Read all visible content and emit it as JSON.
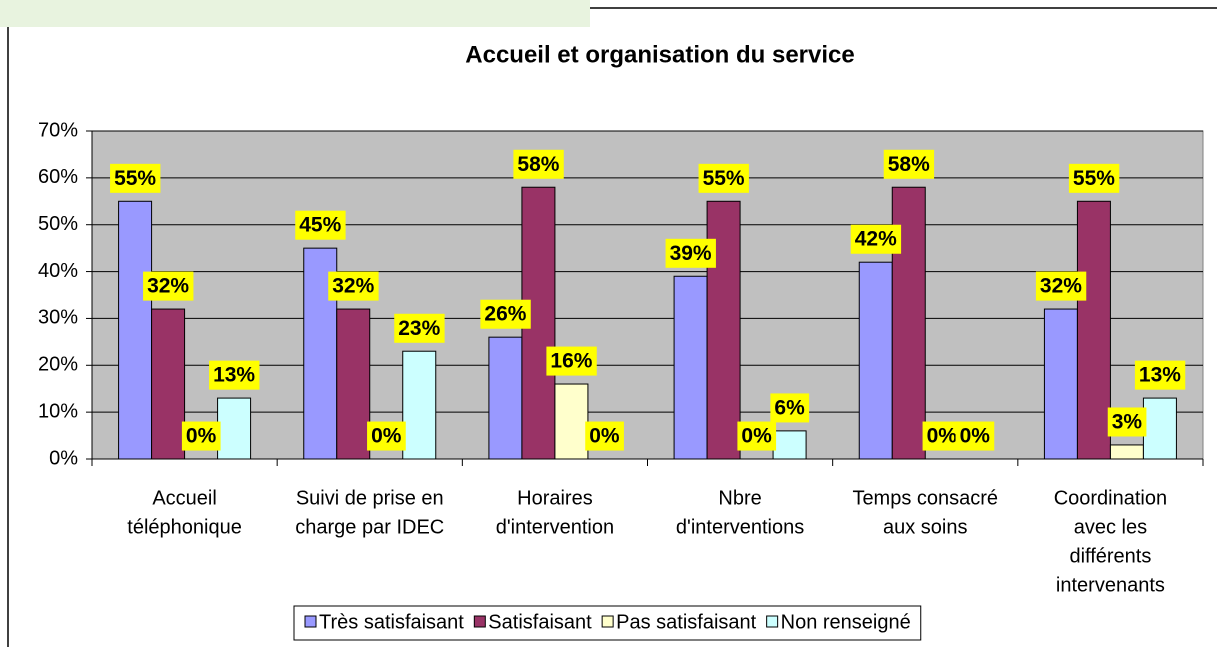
{
  "chart_data": {
    "type": "bar",
    "title": "Accueil et organisation du service",
    "categories": [
      [
        "Accueil",
        "téléphonique"
      ],
      [
        "Suivi de prise en",
        "charge par IDEC"
      ],
      [
        "Horaires",
        "d'intervention"
      ],
      [
        "Nbre",
        "d'interventions"
      ],
      [
        "Temps consacré",
        "aux soins"
      ],
      [
        "Coordination",
        "avec les",
        "différents",
        "intervenants"
      ]
    ],
    "series": [
      {
        "name": "Très satisfaisant",
        "color": "#9999ff",
        "values": [
          55,
          45,
          26,
          39,
          42,
          32
        ],
        "value_labels": [
          "55%",
          "45%",
          "26%",
          "39%",
          "42%",
          "32%"
        ]
      },
      {
        "name": "Satisfaisant",
        "color": "#993366",
        "values": [
          32,
          32,
          58,
          55,
          58,
          55
        ],
        "value_labels": [
          "32%",
          "32%",
          "58%",
          "55%",
          "58%",
          "55%"
        ]
      },
      {
        "name": "Pas satisfaisant",
        "color": "#ffffcc",
        "values": [
          0,
          0,
          16,
          0,
          0,
          3
        ],
        "value_labels": [
          "0%",
          "0%",
          "16%",
          "0%",
          "0%",
          "3%"
        ]
      },
      {
        "name": "Non renseigné",
        "color": "#ccffff",
        "values": [
          13,
          23,
          0,
          6,
          0,
          13
        ],
        "value_labels": [
          "13%",
          "23%",
          "0%",
          "6%",
          "0%",
          "13%"
        ]
      }
    ],
    "ylim": [
      0,
      70
    ],
    "yticks": [
      {
        "value": 0,
        "label": "0%"
      },
      {
        "value": 10,
        "label": "10%"
      },
      {
        "value": 20,
        "label": "20%"
      },
      {
        "value": 30,
        "label": "30%"
      },
      {
        "value": 40,
        "label": "40%"
      },
      {
        "value": 50,
        "label": "50%"
      },
      {
        "value": 60,
        "label": "60%"
      },
      {
        "value": 70,
        "label": "70%"
      }
    ],
    "grid": true,
    "legend": "bottom"
  }
}
